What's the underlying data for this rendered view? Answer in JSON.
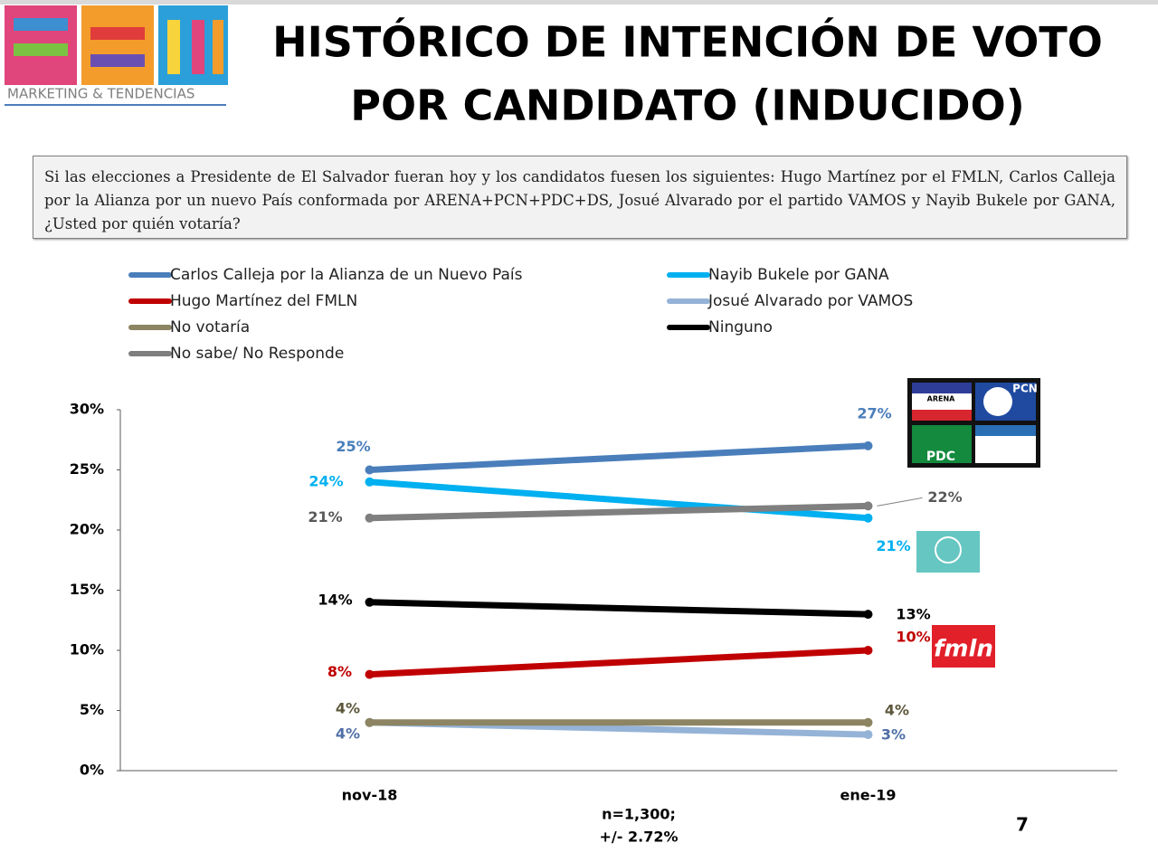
{
  "chart_data": {
    "type": "line",
    "brand": "MARKETING & TENDENCIAS",
    "title_lines": [
      "HISTÓRICO DE INTENCIÓN DE VOTO",
      "POR CANDIDATO (INDUCIDO)"
    ],
    "question": "Si las elecciones a Presidente de El Salvador fueran hoy y los candidatos fuesen los siguientes: Hugo Martínez por el FMLN, Carlos Calleja por la Alianza por un nuevo País conformada por ARENA+PCN+PDC+DS, Josué Alvarado por el partido VAMOS y Nayib Bukele por GANA, ¿Usted por quién votaría?",
    "categories": [
      "nov-18",
      "ene-19"
    ],
    "series": [
      {
        "name": "Carlos Calleja por la Alianza de un Nuevo País",
        "color": "#4a7ebb",
        "values": [
          25,
          27
        ],
        "value_labels": [
          "25%",
          "27%"
        ]
      },
      {
        "name": "Nayib Bukele por GANA",
        "color": "#00b0f0",
        "values": [
          24,
          21
        ],
        "value_labels": [
          "24%",
          "21%"
        ]
      },
      {
        "name": "Hugo Martínez del FMLN",
        "color": "#c00000",
        "values": [
          8,
          10
        ],
        "value_labels": [
          "8%",
          "10%"
        ]
      },
      {
        "name": "Josué Alvarado por VAMOS",
        "color": "#95b3d7",
        "values": [
          4,
          3
        ],
        "value_labels": [
          "4%",
          "3%"
        ]
      },
      {
        "name": "No votaría",
        "color": "#8c8462",
        "values": [
          4,
          4
        ],
        "value_labels": [
          "4%",
          "4%"
        ]
      },
      {
        "name": "Ninguno",
        "color": "#000000",
        "values": [
          14,
          13
        ],
        "value_labels": [
          "14%",
          "13%"
        ]
      },
      {
        "name": "No sabe/ No Responde",
        "color": "#7f7f7f",
        "values": [
          21,
          22
        ],
        "value_labels": [
          "21%",
          "22%"
        ]
      }
    ],
    "ylim": [
      0,
      30
    ],
    "yticks": [
      {
        "value": 0,
        "label": "0%"
      },
      {
        "value": 5,
        "label": "5%"
      },
      {
        "value": 10,
        "label": "10%"
      },
      {
        "value": 15,
        "label": "15%"
      },
      {
        "value": 20,
        "label": "20%"
      },
      {
        "value": 25,
        "label": "25%"
      },
      {
        "value": 30,
        "label": "30%"
      }
    ],
    "sample_note": [
      "n=1,300;",
      "+/- 2.72%"
    ],
    "logo_texts": [
      "ARENA",
      "PCN",
      "PDC",
      "fmln"
    ],
    "page_number": "7"
  }
}
